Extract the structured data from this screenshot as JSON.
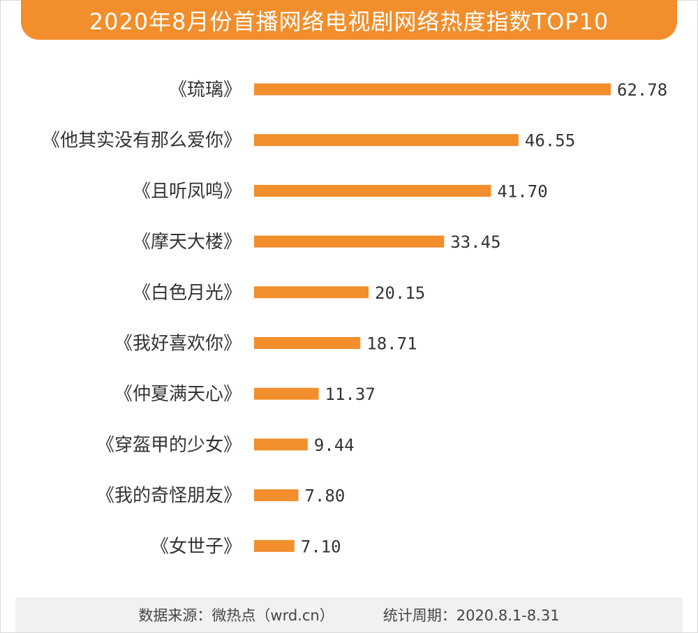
{
  "header": {
    "title": "2020年8月份首播网络电视剧网络热度指数TOP10"
  },
  "colors": {
    "accent": "#f28e2b"
  },
  "chart_data": {
    "type": "bar",
    "orientation": "horizontal",
    "title": "2020年8月份首播网络电视剧网络热度指数TOP10",
    "categories": [
      "《琉璃》",
      "《他其实没有那么爱你》",
      "《且听凤鸣》",
      "《摩天大楼》",
      "《白色月光》",
      "《我好喜欢你》",
      "《仲夏满天心》",
      "《穿盔甲的少女》",
      "《我的奇怪朋友》",
      "《女世子》"
    ],
    "values": [
      62.78,
      46.55,
      41.7,
      33.45,
      20.15,
      18.71,
      11.37,
      9.44,
      7.8,
      7.1
    ],
    "value_labels": [
      "62.78",
      "46.55",
      "41.70",
      "33.45",
      "20.15",
      "18.71",
      "11.37",
      "9.44",
      "7.80",
      "7.10"
    ],
    "grid": false,
    "legend": "none"
  },
  "footer": {
    "source": "数据来源：微热点（wrd.cn）",
    "period": "统计周期：2020.8.1-8.31"
  }
}
